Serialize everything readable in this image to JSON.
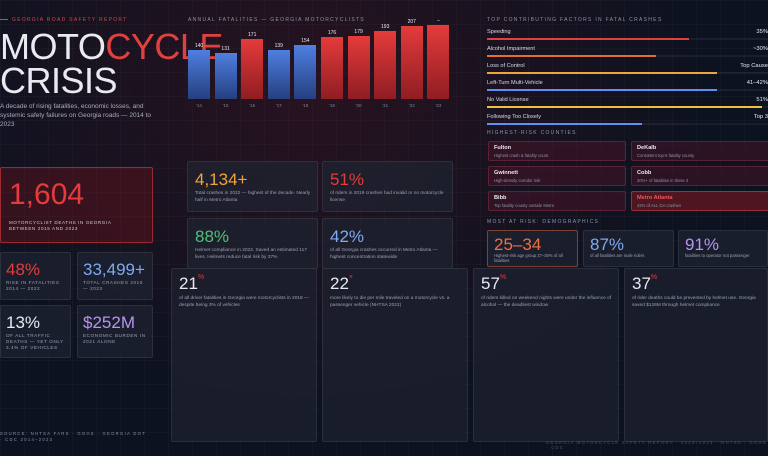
{
  "header": {
    "kicker": "Georgia Road Safety Report",
    "title_a": "MOTO",
    "title_b": "CYCLE",
    "title_c": "CRISIS",
    "subtitle": "A decade of rising fatalities, economic losses, and systemic safety failures on Georgia roads — 2014 to 2023"
  },
  "hero_stat": {
    "value": "1,604",
    "caption": "Motorcyclist deaths in Georgia between 2015 and 2023"
  },
  "small_stats": [
    {
      "value": "48%",
      "caption": "Rise in fatalities 2014 — 2022",
      "color": "#e53b3b"
    },
    {
      "value": "33,499+",
      "caption": "Total crashes 2015 — 2023",
      "color": "#7faaf0"
    },
    {
      "value": "13%",
      "caption": "Of all traffic deaths — yet only 3.4% of vehicles",
      "color": "#e8eaf0"
    },
    {
      "value": "$252M",
      "caption": "Economic burden in 2021 alone",
      "color": "#b893f0"
    }
  ],
  "chart_data": {
    "type": "bar",
    "title": "Annual Fatalities — Georgia Motorcyclists",
    "categories": [
      "'14",
      "'15",
      "'16",
      "'17",
      "'18",
      "'19",
      "'20",
      "'21",
      "'22",
      "'23"
    ],
    "values": [
      140,
      131,
      171,
      139,
      154,
      176,
      179,
      193,
      207,
      null
    ],
    "value_labels": [
      "140",
      "131",
      "171",
      "139",
      "154",
      "176",
      "179",
      "193",
      "207",
      "–"
    ],
    "colors": [
      "blue",
      "blue",
      "red",
      "blue",
      "blue",
      "red",
      "red",
      "red",
      "red",
      "red"
    ],
    "ylim": [
      0,
      210
    ]
  },
  "mid_stats": [
    {
      "value": "4,134+",
      "desc": "Total crashes in 2022 — highest of the decade. Nearly half in Metro Atlanta",
      "color": "#f0a53c"
    },
    {
      "value": "51%",
      "desc": "of riders in 2019 crashes had invalid or no motorcycle license",
      "color": "#e53b3b"
    },
    {
      "value": "88%",
      "desc": "Helmet compliance in 2022. Saved an estimated 117 lives. Helmets reduce fatal risk by 37%",
      "color": "#4fc07a"
    },
    {
      "value": "42%",
      "desc": "of all Georgia crashes occurred in Metro Atlanta — highest concentration statewide",
      "color": "#7faaf0"
    }
  ],
  "factors": {
    "title": "Top Contributing Factors in Fatal Crashes",
    "items": [
      {
        "label": "Speeding",
        "value": "35%",
        "fill": 0.72,
        "color": "#e0413f"
      },
      {
        "label": "Alcohol Impairment",
        "value": "~30%",
        "fill": 0.6,
        "color": "#e07030"
      },
      {
        "label": "Loss of Control",
        "value": "Top Cause",
        "fill": 0.82,
        "color": "#f0a53c"
      },
      {
        "label": "Left-Turn Multi-Vehicle",
        "value": "41–42%",
        "fill": 0.82,
        "color": "#5f8ff0"
      },
      {
        "label": "No Valid License",
        "value": "51%",
        "fill": 0.98,
        "color": "#f0c03c"
      },
      {
        "label": "Following Too Closely",
        "value": "Top 3",
        "fill": 0.55,
        "color": "#5f8ff0"
      }
    ]
  },
  "counties": {
    "title": "Highest-Risk Counties",
    "items": [
      {
        "name": "Fulton",
        "desc": "Highest crash & fatality count",
        "highlight": false
      },
      {
        "name": "DeKalb",
        "desc": "Consistent top-5 fatality county",
        "highlight": false
      },
      {
        "name": "Gwinnett",
        "desc": "High-density corridor risk",
        "highlight": false
      },
      {
        "name": "Cobb",
        "desc": "20%+ of fatalities in these 3",
        "highlight": false
      },
      {
        "name": "Bibb",
        "desc": "Top fatality county outside Metro",
        "highlight": false
      },
      {
        "name": "Metro Atlanta",
        "desc": "42% of ALL GA crashes",
        "highlight": true
      }
    ]
  },
  "demographics": {
    "title": "Most at Risk: Demographics",
    "items": [
      {
        "value": "25–34",
        "desc": "Highest-risk age group 27–30% of all fatalities",
        "color": "#f07040"
      },
      {
        "value": "87%",
        "desc": "of all fatalities are male riders",
        "color": "#7faaf0"
      },
      {
        "value": "91%",
        "desc": "fatalities to operator not passenger",
        "color": "#b893f0"
      }
    ]
  },
  "bottom_stats": [
    {
      "value": "21",
      "sup": "%",
      "desc": "of all driver fatalities in Georgia were motorcyclists in 2018 — despite being 3% of vehicles"
    },
    {
      "value": "22",
      "sup": "×",
      "desc": "more likely to die per mile traveled on a motorcycle vs. a passenger vehicle (NHTSA 2022)"
    },
    {
      "value": "57",
      "sup": "%",
      "desc": "of riders killed on weekend nights were under the influence of alcohol — the deadliest window"
    },
    {
      "value": "37",
      "sup": "%",
      "desc": "of rider deaths could be prevented by helmet use. Georgia saved $126M through helmet compliance"
    }
  ],
  "footer": {
    "source": "Source: NHTSA FARS · GOHS · Georgia DOT · CDC 2014–2023",
    "right": "Georgia Motorcycle Safety Report · 2014–2023 · NHTSA · GOHS · CDC"
  }
}
